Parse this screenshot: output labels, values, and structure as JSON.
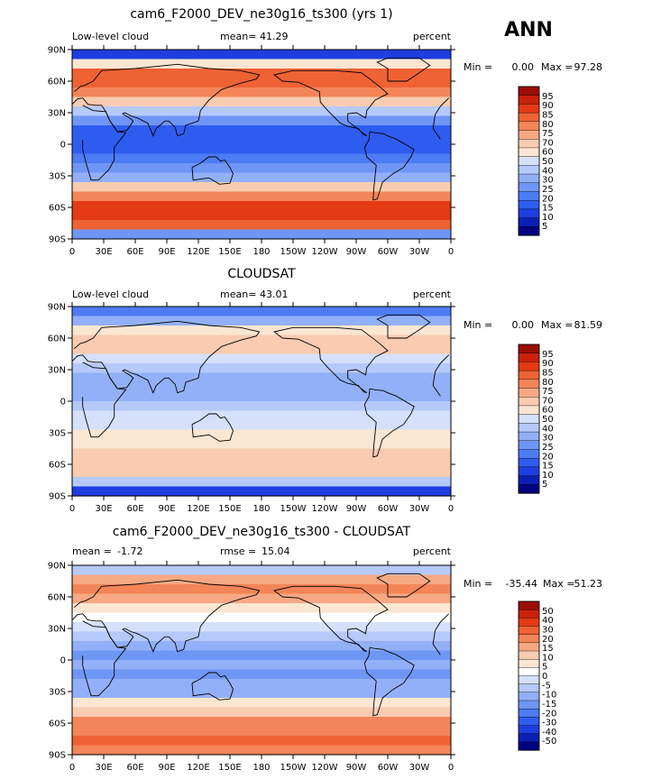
{
  "season": "ANN",
  "colors": {
    "abs_scale": [
      "#000080",
      "#0a1fb4",
      "#1e3ee0",
      "#2f5cf0",
      "#4d7bf3",
      "#6f96f5",
      "#92b0f7",
      "#b5c9fa",
      "#d5e0fb",
      "#fbe6d2",
      "#f9cbb0",
      "#f6a983",
      "#f38558",
      "#ef6234",
      "#e43a15",
      "#c9210b",
      "#9a0d03"
    ],
    "diff_scale": [
      "#000080",
      "#0a1fb4",
      "#1e3ee0",
      "#2f5cf0",
      "#4d7bf3",
      "#6f96f5",
      "#92b0f7",
      "#b5c9fa",
      "#d5e0fb",
      "#ffffff",
      "#fbe6d2",
      "#f9cbb0",
      "#f6a983",
      "#f38558",
      "#ef6234",
      "#e43a15",
      "#c9210b",
      "#9a0d03"
    ],
    "coast": "#000000"
  },
  "chart_data": [
    {
      "type": "heatmap",
      "title": "cam6_F2000_DEV_ne30g16_ts300 (yrs 1)",
      "left_label": "Low-level cloud",
      "stat_label": "mean=",
      "stat_value": "41.29",
      "units": "percent",
      "min_label": "Min =",
      "min_value": "0.00",
      "max_label": "Max =",
      "max_value": "97.28",
      "lat_ticks": [
        "90N",
        "60N",
        "30N",
        "0",
        "30S",
        "60S",
        "90S"
      ],
      "lon_ticks": [
        "0",
        "30E",
        "60E",
        "90E",
        "120E",
        "150E",
        "180",
        "150W",
        "120W",
        "90W",
        "60W",
        "30W",
        "0"
      ],
      "colorbar_levels": [
        "95",
        "90",
        "85",
        "80",
        "75",
        "70",
        "60",
        "50",
        "40",
        "30",
        "25",
        "20",
        "15",
        "10",
        "5"
      ],
      "lat_profile": [
        12,
        55,
        80,
        82,
        74,
        60,
        42,
        30,
        22,
        18,
        22,
        24,
        30,
        40,
        60,
        72,
        85,
        88,
        80,
        35
      ]
    },
    {
      "type": "heatmap",
      "title": "CLOUDSAT",
      "left_label": "Low-level cloud",
      "stat_label": "mean=",
      "stat_value": "43.01",
      "units": "percent",
      "min_label": "Min =",
      "min_value": "0.00",
      "max_label": "Max =",
      "max_value": "81.59",
      "lat_ticks": [
        "90N",
        "60N",
        "30N",
        "0",
        "30S",
        "60S",
        "90S"
      ],
      "lon_ticks": [
        "0",
        "30E",
        "60E",
        "90E",
        "120E",
        "150E",
        "180",
        "150W",
        "120W",
        "90W",
        "60W",
        "30W",
        "0"
      ],
      "colorbar_levels": [
        "95",
        "90",
        "85",
        "80",
        "75",
        "70",
        "60",
        "50",
        "40",
        "30",
        "25",
        "20",
        "15",
        "10",
        "5"
      ],
      "lat_profile": [
        25,
        40,
        58,
        62,
        60,
        52,
        42,
        38,
        36,
        40,
        46,
        48,
        52,
        56,
        58,
        62,
        64,
        60,
        45,
        12
      ]
    },
    {
      "type": "heatmap",
      "title": "cam6_F2000_DEV_ne30g16_ts300 - CLOUDSAT",
      "left_label": "",
      "stat_label": "mean =",
      "stat_value": "-1.72",
      "stat2_label": "rmse =",
      "stat2_value": "15.04",
      "units": "percent",
      "min_label": "Min =",
      "min_value": "-35.44",
      "max_label": "Max =",
      "max_value": "51.23",
      "lat_ticks": [
        "90N",
        "60N",
        "30N",
        "0",
        "30S",
        "60S",
        "90S"
      ],
      "lon_ticks": [
        "0",
        "30E",
        "60E",
        "90E",
        "120E",
        "150E",
        "180",
        "150W",
        "120W",
        "90W",
        "60W",
        "30W",
        "0"
      ],
      "colorbar_levels": [
        "50",
        "40",
        "30",
        "20",
        "15",
        "10",
        "5",
        "0",
        "-5",
        "-10",
        "-15",
        "-20",
        "-30",
        "-40",
        "-50"
      ],
      "lat_profile": [
        -10,
        20,
        25,
        20,
        12,
        6,
        -2,
        -12,
        -16,
        -20,
        -18,
        -20,
        -16,
        -14,
        8,
        14,
        25,
        30,
        34,
        25
      ]
    }
  ]
}
